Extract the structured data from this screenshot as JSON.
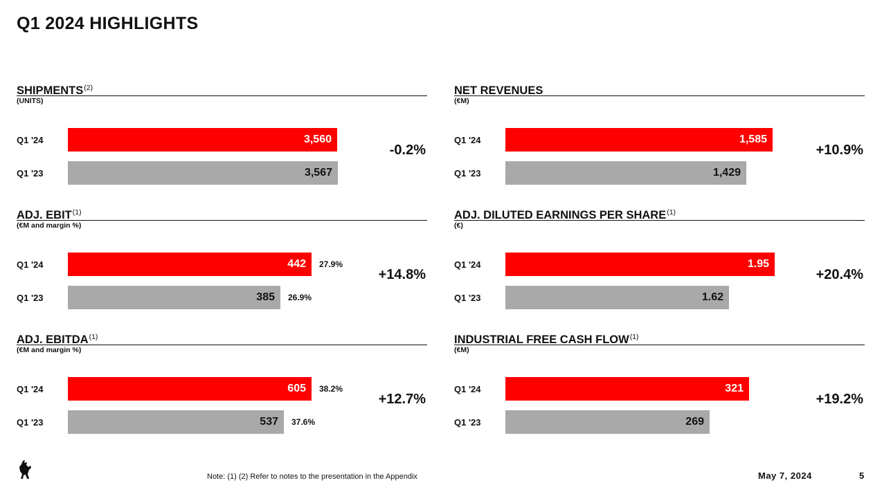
{
  "title": "Q1 2024 HIGHLIGHTS",
  "colors": {
    "current": "#ff0000",
    "prior": "#a9a9a9",
    "text": "#111111"
  },
  "chart_data": [
    {
      "type": "bar",
      "orientation": "horizontal",
      "title": "SHIPMENTS",
      "footnote": "(2)",
      "unit": "(UNITS)",
      "categories": [
        "Q1 '24",
        "Q1 '23"
      ],
      "values": [
        3560,
        3567
      ],
      "value_labels": [
        "3,560",
        "3,567"
      ],
      "margins": [
        "",
        ""
      ],
      "change": "-0.2%"
    },
    {
      "type": "bar",
      "orientation": "horizontal",
      "title": "NET REVENUES",
      "footnote": "",
      "unit": "(€M)",
      "categories": [
        "Q1 '24",
        "Q1 '23"
      ],
      "values": [
        1585,
        1429
      ],
      "value_labels": [
        "1,585",
        "1,429"
      ],
      "margins": [
        "",
        ""
      ],
      "change": "+10.9%"
    },
    {
      "type": "bar",
      "orientation": "horizontal",
      "title": "ADJ. EBIT",
      "footnote": "(1)",
      "unit": "(€M and margin %)",
      "categories": [
        "Q1 '24",
        "Q1 '23"
      ],
      "values": [
        442,
        385
      ],
      "value_labels": [
        "442",
        "385"
      ],
      "margins": [
        "27.9%",
        "26.9%"
      ],
      "change": "+14.8%"
    },
    {
      "type": "bar",
      "orientation": "horizontal",
      "title": "ADJ. DILUTED EARNINGS PER SHARE",
      "footnote": "(1)",
      "unit": "(€)",
      "categories": [
        "Q1 '24",
        "Q1 '23"
      ],
      "values": [
        1.95,
        1.62
      ],
      "value_labels": [
        "1.95",
        "1.62"
      ],
      "margins": [
        "",
        ""
      ],
      "change": "+20.4%"
    },
    {
      "type": "bar",
      "orientation": "horizontal",
      "title": "ADJ. EBITDA",
      "footnote": "(1)",
      "unit": "(€M and margin %)",
      "categories": [
        "Q1 '24",
        "Q1 '23"
      ],
      "values": [
        605,
        537
      ],
      "value_labels": [
        "605",
        "537"
      ],
      "margins": [
        "38.2%",
        "37.6%"
      ],
      "change": "+12.7%"
    },
    {
      "type": "bar",
      "orientation": "horizontal",
      "title": "INDUSTRIAL FREE CASH FLOW",
      "footnote": "(1)",
      "unit": "(€M)",
      "categories": [
        "Q1 '24",
        "Q1 '23"
      ],
      "values": [
        321,
        269
      ],
      "value_labels": [
        "321",
        "269"
      ],
      "margins": [
        "",
        ""
      ],
      "change": "+19.2%"
    }
  ],
  "footer": {
    "logo_icon": "prancing-horse-icon",
    "note": "Note: (1) (2) Refer to notes to the presentation in the Appendix",
    "date": "May 7, 2024",
    "page": "5"
  }
}
